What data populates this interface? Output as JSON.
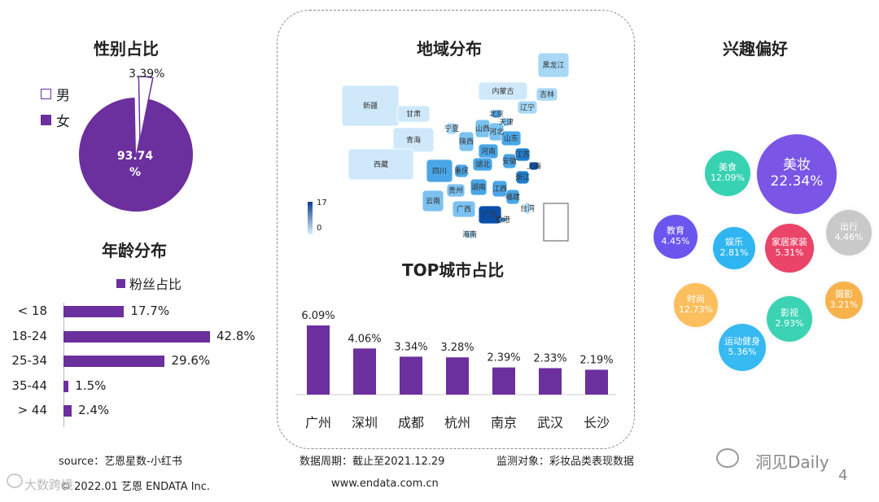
{
  "gender": {
    "title": "性别占比",
    "legend": [
      {
        "label": "男",
        "color": "#ffffff"
      },
      {
        "label": "女",
        "color": "#6b2f9e"
      }
    ],
    "male_label": "3.39%",
    "female_label_line1": "93.74",
    "female_label_line2": "%"
  },
  "age": {
    "title": "年龄分布",
    "legend": "粉丝占比",
    "rows": [
      {
        "label": "< 18",
        "value": 17.7,
        "text": "17.7%"
      },
      {
        "label": "18-24",
        "value": 42.8,
        "text": "42.8%"
      },
      {
        "label": "25-34",
        "value": 29.6,
        "text": "29.6%"
      },
      {
        "label": "35-44",
        "value": 1.5,
        "text": "1.5%"
      },
      {
        "label": "> 44",
        "value": 2.4,
        "text": "2.4%"
      }
    ]
  },
  "map": {
    "title": "地域分布",
    "scale_max": "17",
    "scale_min": "0",
    "regions": [
      "黑龙江",
      "内蒙古",
      "吉林",
      "新疆",
      "辽宁",
      "甘肃",
      "北京",
      "天津",
      "宁夏",
      "山西",
      "河北",
      "青海",
      "陕西",
      "山东",
      "河南",
      "西藏",
      "江苏",
      "四川",
      "重庆",
      "安徽",
      "湖北",
      "上海",
      "浙江",
      "贵州",
      "湖南",
      "江西",
      "云南",
      "福建",
      "广西",
      "广东",
      "台湾",
      "香港",
      "海南"
    ]
  },
  "chart_data": [
    {
      "type": "pie",
      "title": "性别占比",
      "labels": [
        "男",
        "女"
      ],
      "values": [
        3.39,
        93.74
      ]
    },
    {
      "type": "bar",
      "title": "年龄分布",
      "orientation": "horizontal",
      "categories": [
        "< 18",
        "18-24",
        "25-34",
        "35-44",
        "> 44"
      ],
      "series": [
        {
          "name": "粉丝占比",
          "values": [
            17.7,
            42.8,
            29.6,
            1.5,
            2.4
          ]
        }
      ]
    },
    {
      "type": "bar",
      "title": "TOP城市占比",
      "categories": [
        "广州",
        "深圳",
        "成都",
        "杭州",
        "南京",
        "武汉",
        "长沙"
      ],
      "values": [
        6.09,
        4.06,
        3.34,
        3.28,
        2.39,
        2.33,
        2.19
      ],
      "labels": [
        "6.09%",
        "4.06%",
        "3.34%",
        "3.28%",
        "2.39%",
        "2.33%",
        "2.19%"
      ]
    },
    {
      "type": "bubble",
      "title": "兴趣偏好",
      "items": [
        {
          "name": "美妆",
          "value": 22.34,
          "text": "22.34%",
          "color": "#7a55e6"
        },
        {
          "name": "美食",
          "value": 12.09,
          "text": "12.09%",
          "color": "#37d2b2"
        },
        {
          "name": "教育",
          "value": 4.45,
          "text": "4.45%",
          "color": "#6a55ee"
        },
        {
          "name": "娱乐",
          "value": 2.81,
          "text": "2.81%",
          "color": "#2fb6f0"
        },
        {
          "name": "家居家装",
          "value": 5.31,
          "text": "5.31%",
          "color": "#ea4468"
        },
        {
          "name": "出行",
          "value": 4.46,
          "text": "4.46%",
          "color": "#c9c9c9"
        },
        {
          "name": "时尚",
          "value": 12.73,
          "text": "12.73%",
          "color": "#fbbf5e"
        },
        {
          "name": "影视",
          "value": 2.93,
          "text": "2.93%",
          "color": "#3bd3b3"
        },
        {
          "name": "摄影",
          "value": 3.21,
          "text": "3.21%",
          "color": "#f8b24c"
        },
        {
          "name": "运动健身",
          "value": 5.36,
          "text": "5.36%",
          "color": "#37b9f2"
        }
      ]
    }
  ],
  "city": {
    "title": "TOP城市占比"
  },
  "interest": {
    "title": "兴趣偏好"
  },
  "footer": {
    "source": "source：艺恩星数-小红书",
    "period": "数据周期：截止至2021.12.29",
    "target": "监测对象：彩妆品类表现数据",
    "copyright": "© 2022.01 艺恩 ENDATA Inc.",
    "website": "www.endata.com.cn",
    "watermark": "洞见Daily",
    "watermark_left": "大数跨境",
    "page": "4"
  }
}
